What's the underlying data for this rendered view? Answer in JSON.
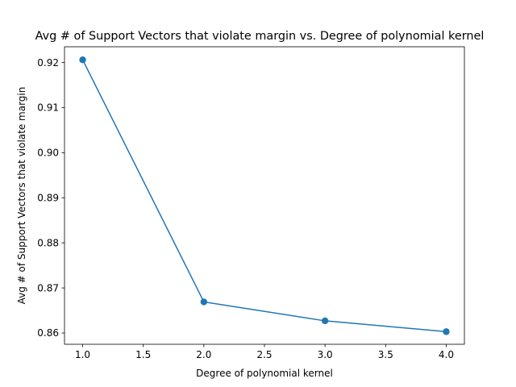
{
  "chart_data": {
    "type": "line",
    "title": "Avg # of Support Vectors that violate margin vs. Degree of polynomial kernel",
    "xlabel": "Degree of polynomial kernel",
    "ylabel": "Avg # of Support Vectors that violate margin",
    "xlim": [
      0.85,
      4.15
    ],
    "ylim": [
      0.8575,
      0.9235
    ],
    "xticks": [
      1.0,
      1.5,
      2.0,
      2.5,
      3.0,
      3.5,
      4.0
    ],
    "xtick_labels": [
      "1.0",
      "1.5",
      "2.0",
      "2.5",
      "3.0",
      "3.5",
      "4.0"
    ],
    "yticks": [
      0.86,
      0.87,
      0.88,
      0.89,
      0.9,
      0.91,
      0.92
    ],
    "ytick_labels": [
      "0.86",
      "0.87",
      "0.88",
      "0.89",
      "0.90",
      "0.91",
      "0.92"
    ],
    "grid": false,
    "series": [
      {
        "color": "#1f77b4",
        "marker": "circle",
        "x": [
          1,
          2,
          3,
          4
        ],
        "y": [
          0.9206,
          0.8669,
          0.8627,
          0.8603
        ]
      }
    ]
  }
}
